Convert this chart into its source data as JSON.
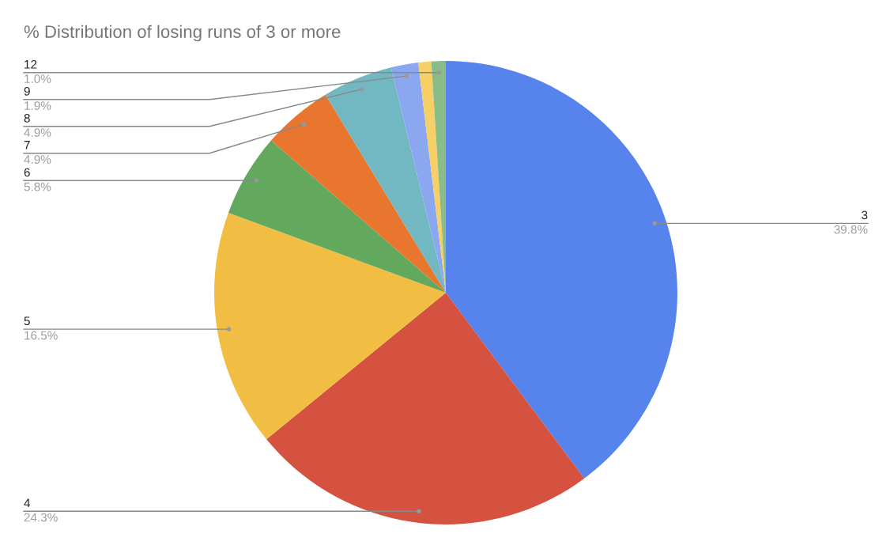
{
  "chart_data": {
    "type": "pie",
    "title": "% Distribution of losing runs of 3 or more",
    "categories": [
      "3",
      "4",
      "5",
      "6",
      "7",
      "8",
      "9",
      null,
      "12"
    ],
    "values": [
      39.8,
      24.3,
      16.5,
      5.8,
      4.9,
      4.9,
      1.9,
      0.9,
      1.0
    ],
    "colors": [
      "#5783ec",
      "#d55140",
      "#f1bd42",
      "#62a85d",
      "#e8762f",
      "#72b8c2",
      "#8aa7f0",
      "#f6d066",
      "#89bd87"
    ],
    "value_labels": [
      "39.8%",
      "24.3%",
      "16.5%",
      "5.8%",
      "4.9%",
      "4.9%",
      "1.9%",
      null,
      "1.0%"
    ],
    "legend": false
  }
}
